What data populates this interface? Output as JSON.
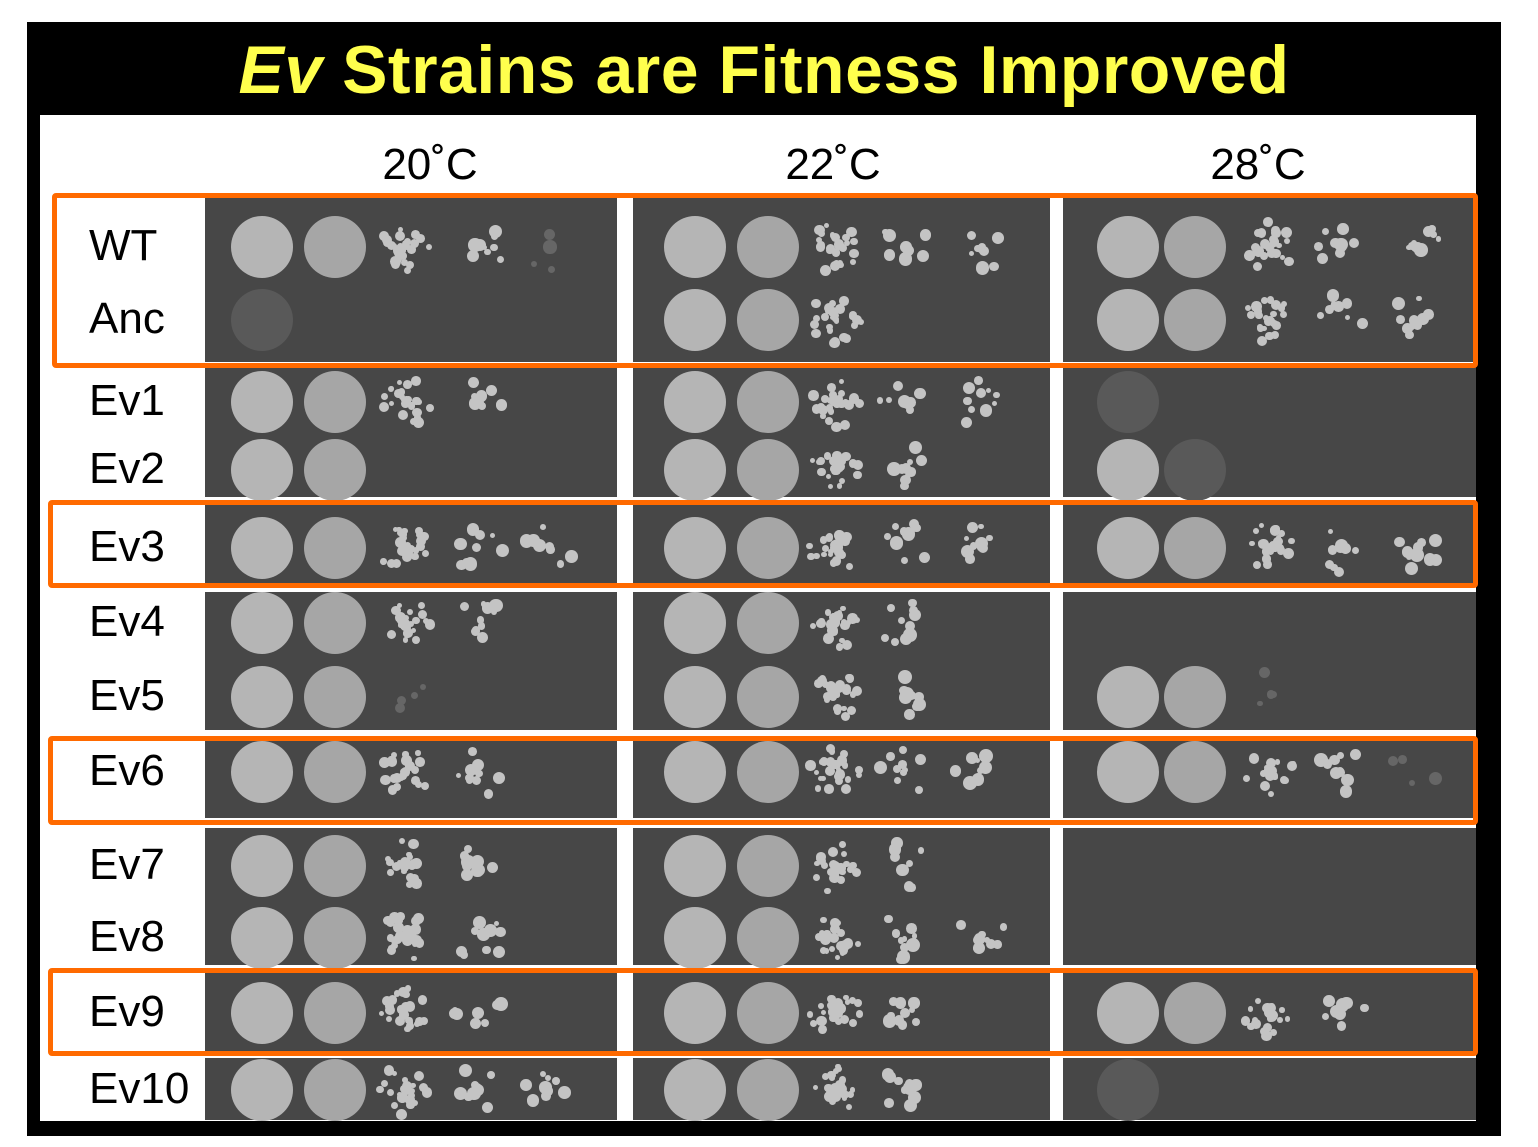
{
  "title": {
    "italic": "Ev",
    "rest": " Strains are Fitness Improved"
  },
  "columns": [
    "20˚C",
    "22˚C",
    "28˚C"
  ],
  "rows": [
    "WT",
    "Anc",
    "Ev1",
    "Ev2",
    "Ev3",
    "Ev4",
    "Ev5",
    "Ev6",
    "Ev7",
    "Ev8",
    "Ev9",
    "Ev10"
  ],
  "highlighted_rows": [
    "WT",
    "Anc",
    "Ev3",
    "Ev6",
    "Ev9"
  ],
  "colors": {
    "title": "#ffff4d",
    "highlight_box": "#ff6a00",
    "background": "#000000",
    "plate": "#474747"
  }
}
